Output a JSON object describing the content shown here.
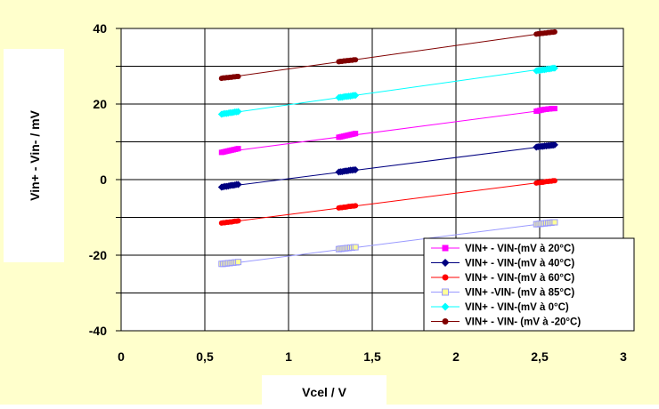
{
  "chart_data": {
    "type": "line",
    "title": "",
    "xlabel": "Vcel / V",
    "ylabel": "Vin+ - Vin- / mV",
    "xlim": [
      0,
      3
    ],
    "ylim": [
      -40,
      40
    ],
    "x_ticks": [
      0,
      0.5,
      1,
      1.5,
      2,
      2.5,
      3
    ],
    "x_tick_labels": [
      "0",
      "0,5",
      "1",
      "1,5",
      "2",
      "2,5",
      "3"
    ],
    "y_ticks": [
      -40,
      -20,
      0,
      20,
      40
    ],
    "y_tick_labels": [
      "-40",
      "-20",
      "0",
      "20",
      "40"
    ],
    "grid": true,
    "legend_position": "bottom-right",
    "x": [
      0.6,
      0.61,
      0.62,
      0.63,
      0.64,
      0.65,
      0.66,
      0.67,
      0.68,
      0.69,
      0.7,
      1.3,
      1.31,
      1.32,
      1.33,
      1.34,
      1.35,
      1.36,
      1.37,
      1.38,
      1.39,
      1.4,
      2.48,
      2.49,
      2.5,
      2.51,
      2.52,
      2.53,
      2.54,
      2.55,
      2.56,
      2.57,
      2.58,
      2.59
    ],
    "series": [
      {
        "name": "VIN+ - VIN-(mV à 20°C)",
        "color": "#ff00ff",
        "marker": "square",
        "fit": [
          0.6,
          7.2,
          2.6,
          18.8
        ],
        "values": [
          7.2,
          7.3,
          7.4,
          7.5,
          7.6,
          7.7,
          7.8,
          7.9,
          8.0,
          8.1,
          8.2,
          11.2,
          11.3,
          11.4,
          11.5,
          11.6,
          11.7,
          11.8,
          11.9,
          12.0,
          12.1,
          12.2,
          18.1,
          18.2,
          18.3,
          18.4,
          18.5,
          18.6,
          18.6,
          18.7,
          18.7,
          18.8,
          18.8,
          18.8
        ]
      },
      {
        "name": "VIN+ - VIN-(mV à 40°C)",
        "color": "#000080",
        "marker": "diamond",
        "fit": [
          0.6,
          -2.0,
          2.6,
          9.2
        ],
        "values": [
          -2.0,
          -1.9,
          -1.8,
          -1.8,
          -1.7,
          -1.6,
          -1.5,
          -1.5,
          -1.4,
          -1.3,
          -1.3,
          2.0,
          2.1,
          2.1,
          2.2,
          2.3,
          2.3,
          2.4,
          2.5,
          2.5,
          2.6,
          2.6,
          8.6,
          8.7,
          8.7,
          8.8,
          8.8,
          8.9,
          8.9,
          9.0,
          9.0,
          9.1,
          9.1,
          9.2
        ]
      },
      {
        "name": "VIN+ - VIN-(mV à 60°C)",
        "color": "#ff0000",
        "marker": "circle",
        "fit": [
          0.6,
          -11.5,
          2.6,
          -0.2
        ],
        "values": [
          -11.5,
          -11.4,
          -11.4,
          -11.3,
          -11.3,
          -11.2,
          -11.2,
          -11.1,
          -11.0,
          -11.0,
          -10.9,
          -7.5,
          -7.4,
          -7.4,
          -7.3,
          -7.3,
          -7.2,
          -7.1,
          -7.1,
          -7.0,
          -7.0,
          -6.9,
          -0.9,
          -0.8,
          -0.8,
          -0.7,
          -0.7,
          -0.6,
          -0.5,
          -0.5,
          -0.4,
          -0.4,
          -0.3,
          -0.3
        ]
      },
      {
        "name": "VIN+ -VIN- (mV à 85°C)",
        "color": "#9999ff",
        "marker": "square-open",
        "fit": [
          0.6,
          -22.5,
          2.6,
          -11.2
        ],
        "values": [
          -22.3,
          -22.3,
          -22.2,
          -22.2,
          -22.1,
          -22.1,
          -22.0,
          -22.0,
          -21.9,
          -21.9,
          -21.8,
          -18.4,
          -18.3,
          -18.3,
          -18.2,
          -18.2,
          -18.1,
          -18.1,
          -18.0,
          -18.0,
          -17.9,
          -17.9,
          -11.8,
          -11.8,
          -11.7,
          -11.7,
          -11.6,
          -11.6,
          -11.5,
          -11.5,
          -11.4,
          -11.4,
          -11.3,
          -11.3
        ]
      },
      {
        "name": "VIN+ - VIN-(mV à 0°C)",
        "color": "#00ffff",
        "marker": "diamond",
        "fit": [
          0.6,
          17.3,
          2.6,
          29.8
        ],
        "values": [
          17.3,
          17.4,
          17.5,
          17.5,
          17.6,
          17.7,
          17.7,
          17.8,
          17.9,
          17.9,
          18.0,
          21.7,
          21.8,
          21.8,
          21.9,
          22.0,
          22.0,
          22.1,
          22.1,
          22.2,
          22.3,
          22.3,
          28.8,
          28.9,
          28.9,
          29.0,
          29.1,
          29.1,
          29.2,
          29.3,
          29.3,
          29.4,
          29.5,
          29.5
        ]
      },
      {
        "name": "VIN+ - VIN- (mV à -20°C)",
        "color": "#800000",
        "marker": "circle",
        "fit": [
          0.6,
          26.8,
          2.6,
          39.2
        ],
        "values": [
          26.8,
          26.9,
          26.9,
          27.0,
          27.0,
          27.1,
          27.1,
          27.2,
          27.2,
          27.3,
          27.3,
          31.2,
          31.3,
          31.3,
          31.4,
          31.4,
          31.5,
          31.5,
          31.6,
          31.6,
          31.7,
          31.7,
          38.5,
          38.6,
          38.6,
          38.7,
          38.7,
          38.8,
          38.8,
          38.9,
          38.9,
          39.0,
          39.0,
          39.1
        ]
      }
    ],
    "colors": {
      "background": "#ffffcc",
      "plot_area": "#ffffff",
      "grid": "#000000"
    }
  }
}
